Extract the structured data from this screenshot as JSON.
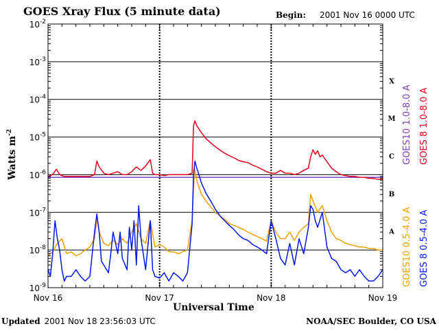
{
  "title": "GOES Xray Flux (5 minute data)",
  "begin": {
    "label": "Begin:",
    "value": "2001 Nov 16 0000 UTC"
  },
  "footer": {
    "updated_label": "Updated",
    "updated_value": "2001 Nov 18 23:56:03 UTC",
    "credit": "NOAA/SEC Boulder, CO USA"
  },
  "colors": {
    "goes10_long": "#7f3fbf",
    "goes8_long": "#e0001a",
    "goes10_short": "#f0a000",
    "goes8_short": "#0018e8",
    "grid": "#000000"
  },
  "chart_data": {
    "type": "line",
    "title": "GOES Xray Flux (5 minute data)",
    "xlabel": "Universal Time",
    "ylabel": "Watts m",
    "ylabel_sup": "-2",
    "yscale": "log",
    "ylim": [
      1e-09,
      0.01
    ],
    "y_ticks": [
      {
        "base": "10",
        "exp": "-2"
      },
      {
        "base": "10",
        "exp": "-3"
      },
      {
        "base": "10",
        "exp": "-4"
      },
      {
        "base": "10",
        "exp": "-5"
      },
      {
        "base": "10",
        "exp": "-6"
      },
      {
        "base": "10",
        "exp": "-7"
      },
      {
        "base": "10",
        "exp": "-8"
      },
      {
        "base": "10",
        "exp": "-9"
      }
    ],
    "x_range_hours": [
      0,
      72
    ],
    "x_ticks": [
      {
        "label": "Nov 16",
        "hour": 0
      },
      {
        "label": "Nov 17",
        "hour": 24
      },
      {
        "label": "Nov 18",
        "hour": 48
      },
      {
        "label": "Nov 19",
        "hour": 72
      }
    ],
    "class_labels": [
      {
        "label": "X",
        "flux": 0.000316
      },
      {
        "label": "M",
        "flux": 3.16e-05
      },
      {
        "label": "C",
        "flux": 3.16e-06
      },
      {
        "label": "B",
        "flux": 3.16e-07
      },
      {
        "label": "A",
        "flux": 3.16e-08
      }
    ],
    "grid": true,
    "legend_position": "right",
    "series": [
      {
        "name": "GOES10 1.0-8.0 A",
        "color": "#7f3fbf",
        "hours": [
          0,
          72
        ],
        "values": [
          8.5e-07,
          8.5e-07
        ]
      },
      {
        "name": "GOES 8 1.0-8.0 A",
        "color": "#e0001a",
        "hours": [
          0,
          1,
          1.8,
          2.5,
          3.5,
          5,
          7,
          9,
          10,
          10.5,
          11,
          12,
          13,
          14,
          15,
          16,
          17,
          18,
          19,
          20,
          21,
          22,
          22.5,
          23,
          24,
          25,
          26,
          28,
          29,
          30,
          31,
          31.3,
          31.6,
          32,
          33,
          34,
          35,
          36,
          37,
          38,
          39,
          40,
          41,
          42,
          43,
          44,
          45,
          46,
          47,
          48,
          49,
          50,
          51,
          52,
          53,
          54,
          55,
          56,
          56.5,
          57,
          57.5,
          58,
          58.5,
          59,
          60,
          61,
          62,
          63,
          64,
          65,
          66,
          67,
          68,
          69,
          70,
          71,
          72
        ],
        "values": [
          9e-07,
          1e-06,
          1.4e-06,
          1e-06,
          9e-07,
          9e-07,
          9e-07,
          9e-07,
          1e-06,
          2.3e-06,
          1.6e-06,
          1.1e-06,
          1e-06,
          1.1e-06,
          1.2e-06,
          1e-06,
          1e-06,
          1.2e-06,
          1.6e-06,
          1.3e-06,
          1.7e-06,
          2.5e-06,
          1.1e-06,
          1e-06,
          1e-06,
          9.5e-07,
          1e-06,
          1e-06,
          1e-06,
          1e-06,
          1.1e-06,
          2e-05,
          2.7e-05,
          2e-05,
          1.3e-05,
          9e-06,
          7e-06,
          5.5e-06,
          4.5e-06,
          3.7e-06,
          3.2e-06,
          2.8e-06,
          2.4e-06,
          2.2e-06,
          2.1e-06,
          1.8e-06,
          1.6e-06,
          1.4e-06,
          1.2e-06,
          1.1e-06,
          1.1e-06,
          1.3e-06,
          1.1e-06,
          1.1e-06,
          1e-06,
          1.1e-06,
          1.3e-06,
          1.5e-06,
          3e-06,
          4.6e-06,
          3.5e-06,
          4.3e-06,
          3e-06,
          3.3e-06,
          2.2e-06,
          1.5e-06,
          1.2e-06,
          1e-06,
          9.5e-07,
          9e-07,
          9e-07,
          8.5e-07,
          8.5e-07,
          8e-07,
          8e-07,
          7.5e-07,
          7.5e-07
        ]
      },
      {
        "name": "GOES10 0.5-4.0 A",
        "color": "#f0a000",
        "hours": [
          0,
          1,
          2,
          3,
          4,
          5,
          6,
          7,
          8,
          9,
          10,
          10.5,
          11,
          12,
          13,
          14,
          15,
          16,
          17,
          18,
          19,
          20,
          21,
          22,
          23,
          24,
          25,
          26,
          27,
          28,
          29,
          30,
          31,
          31.5,
          32,
          33,
          34,
          35,
          36,
          37,
          38,
          39,
          40,
          41,
          42,
          43,
          44,
          45,
          46,
          47,
          48,
          49,
          50,
          51,
          52,
          53,
          54,
          55,
          56,
          56.5,
          57,
          58,
          59,
          60,
          61,
          62,
          63,
          64,
          65,
          66,
          67,
          68,
          69,
          70,
          71,
          72
        ],
        "values": [
          7e-09,
          9e-09,
          1.5e-08,
          2e-08,
          8e-09,
          9e-09,
          7e-09,
          8e-09,
          1e-08,
          1.2e-08,
          2e-08,
          7e-08,
          3e-08,
          1.5e-08,
          1.3e-08,
          1.8e-08,
          1.4e-08,
          2e-08,
          1.5e-08,
          3e-08,
          5e-08,
          2e-08,
          1.5e-08,
          6e-08,
          1.2e-08,
          1.4e-08,
          1.2e-08,
          9e-09,
          9e-09,
          8e-09,
          9e-09,
          1e-08,
          6e-08,
          1.5e-06,
          7e-07,
          3e-07,
          2e-07,
          1.4e-07,
          1e-07,
          8e-08,
          6.5e-08,
          5e-08,
          4.5e-08,
          4e-08,
          3.5e-08,
          3e-08,
          2.6e-08,
          2.3e-08,
          2e-08,
          1.7e-08,
          6e-08,
          3e-08,
          2e-08,
          2e-08,
          3e-08,
          1.8e-08,
          3e-08,
          4e-08,
          5e-08,
          3e-07,
          2e-07,
          1e-07,
          1.5e-07,
          6e-08,
          3e-08,
          2e-08,
          1.8e-08,
          1.5e-08,
          1.4e-08,
          1.3e-08,
          1.2e-08,
          1.2e-08,
          1.1e-08,
          1.1e-08,
          1e-08,
          1e-08
        ]
      },
      {
        "name": "GOES 8 0.5-4.0 A",
        "color": "#0018e8",
        "hours": [
          0,
          0.5,
          1,
          1.5,
          2,
          2.5,
          3,
          3.5,
          4,
          5,
          6,
          7,
          8,
          9,
          10,
          10.5,
          11,
          11.5,
          12,
          13,
          13.5,
          14,
          15,
          15.5,
          16,
          17,
          17.5,
          18,
          18.5,
          19,
          19.5,
          20,
          21,
          22,
          22.5,
          23,
          24,
          25,
          26,
          27,
          28,
          29,
          30,
          31,
          31.3,
          31.6,
          32,
          33,
          34,
          35,
          36,
          37,
          38,
          39,
          40,
          41,
          42,
          43,
          44,
          45,
          46,
          47,
          48,
          49,
          50,
          51,
          52,
          53,
          54,
          55,
          56,
          56.5,
          57,
          57.5,
          58,
          59,
          60,
          61,
          62,
          63,
          64,
          65,
          66,
          67,
          68,
          69,
          70,
          71,
          72
        ],
        "values": [
          3e-09,
          2e-09,
          8e-09,
          6e-08,
          2e-08,
          1e-08,
          3e-09,
          1.5e-09,
          2e-09,
          2e-09,
          3e-09,
          2e-09,
          1.5e-09,
          2e-09,
          3e-08,
          9e-08,
          3e-08,
          5e-09,
          4e-09,
          2.5e-09,
          8e-09,
          3e-08,
          8e-09,
          3e-08,
          6e-09,
          3e-09,
          4e-08,
          1e-08,
          6e-08,
          4e-09,
          1.5e-07,
          2e-08,
          3e-09,
          6e-08,
          3e-09,
          2e-09,
          1.8e-09,
          2.5e-09,
          1.5e-09,
          2.5e-09,
          2e-09,
          1.5e-09,
          2.5e-09,
          5e-08,
          1e-06,
          2.3e-06,
          1.5e-06,
          6e-07,
          3.2e-07,
          2e-07,
          1.2e-07,
          8e-08,
          6e-08,
          4.5e-08,
          3.5e-08,
          2.5e-08,
          2e-08,
          1.8e-08,
          1.4e-08,
          1.2e-08,
          1e-08,
          8e-09,
          6e-08,
          2e-08,
          6e-09,
          4e-09,
          1.5e-08,
          4e-09,
          2e-08,
          8e-09,
          4e-08,
          1.5e-07,
          1.2e-07,
          6e-08,
          4e-08,
          1e-07,
          1.2e-08,
          6e-09,
          5e-09,
          3e-09,
          2.5e-09,
          3e-09,
          2e-09,
          3e-09,
          2e-09,
          1.5e-09,
          1.5e-09,
          2e-09,
          3e-09
        ]
      }
    ]
  }
}
